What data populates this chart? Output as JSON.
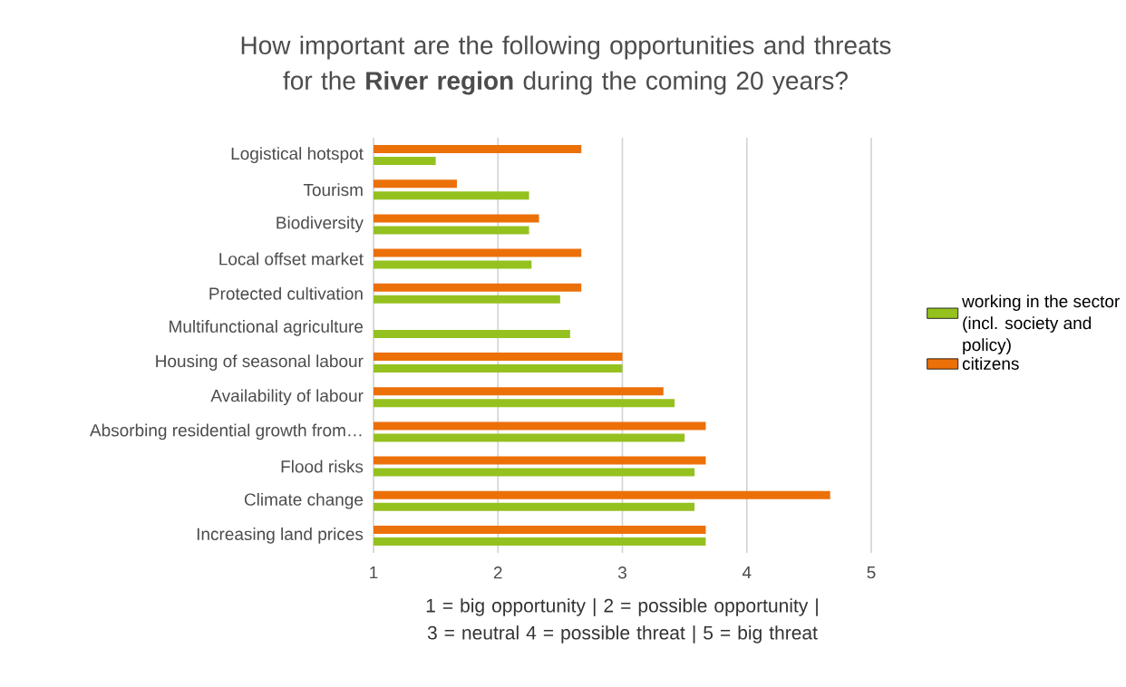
{
  "chart_data": {
    "type": "bar",
    "orientation": "horizontal",
    "title": "How important are the following opportunities and threats for the **River region** during the coming 20 years?",
    "xlabel": "1 = big opportunity | 2 = possible opportunity | 3 = neutral 4 = possible threat | 5 = big threat",
    "categories": [
      "Logistical hotspot",
      "Tourism",
      "Biodiversity",
      "Local offset market",
      "Protected cultivation",
      "Multifunctional agriculture",
      "Housing of seasonal labour",
      "Availability of labour",
      "Absorbing residential growth from…",
      "Flood risks",
      "Climate change",
      "Increasing land prices"
    ],
    "series": [
      {
        "name": "working in the sector (incl. society and policy)",
        "color": "#95c11f",
        "values": [
          1.5,
          2.25,
          2.25,
          2.27,
          2.5,
          2.58,
          3,
          3.42,
          3.5,
          3.58,
          3.58,
          3.67
        ]
      },
      {
        "name": "citizens",
        "color": "#ec7008",
        "values": [
          2.67,
          1.67,
          2.33,
          2.67,
          2.67,
          null,
          3,
          3.33,
          3.67,
          3.67,
          4.67,
          3.67
        ]
      }
    ],
    "xlim": [
      1,
      5
    ],
    "xticks": [
      1,
      2,
      3,
      4,
      5
    ],
    "grid": "x",
    "legend": "right"
  }
}
